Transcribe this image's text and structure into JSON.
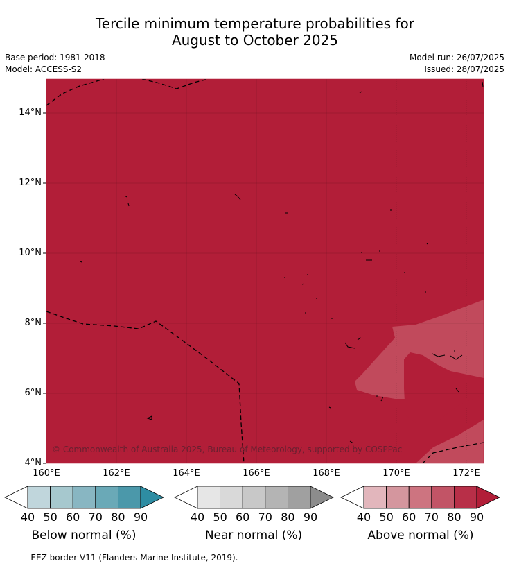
{
  "title_line1": "Tercile minimum temperature probabilities for",
  "title_line2": "August to October 2025",
  "meta": {
    "base_period": "Base period: 1981-2018",
    "model": "Model: ACCESS-S2",
    "model_run": "Model run: 26/07/2025",
    "issued": "Issued: 28/07/2025"
  },
  "map": {
    "lat_labels": [
      "14°N",
      "12°N",
      "10°N",
      "8°N",
      "6°N",
      "4°N"
    ],
    "lon_labels": [
      "160°E",
      "162°E",
      "164°E",
      "166°E",
      "168°E",
      "170°E",
      "172°E"
    ],
    "copyright": "© Commonwealth of Australia 2025, Bureau of Meteorology, supported by COSPPac",
    "colors": {
      "above_80_90": "#b21e38",
      "above_70_80": "#c14a5c",
      "land": "#000000"
    }
  },
  "colorbars": [
    {
      "name": "below",
      "label": "Below normal (%)",
      "ticks": [
        "40",
        "50",
        "60",
        "70",
        "80",
        "90"
      ],
      "colors": [
        "#ffffff",
        "#c0d6dc",
        "#a6c8ce",
        "#88b6c2",
        "#6aa9b7",
        "#4b98aa",
        "#2e8da3"
      ]
    },
    {
      "name": "near",
      "label": "Near normal (%)",
      "ticks": [
        "40",
        "50",
        "60",
        "70",
        "80",
        "90"
      ],
      "colors": [
        "#ffffff",
        "#e6e6e6",
        "#d9d9d9",
        "#c8c8c8",
        "#b4b4b4",
        "#a0a0a0",
        "#8c8c8c"
      ]
    },
    {
      "name": "above",
      "label": "Above normal (%)",
      "ticks": [
        "40",
        "50",
        "60",
        "70",
        "80",
        "90"
      ],
      "colors": [
        "#ffffff",
        "#e2b6bc",
        "#d4969e",
        "#cd7480",
        "#c25466",
        "#b82f48",
        "#b21e38"
      ]
    }
  ],
  "footnote": "-- -- -- EEZ border V11 (Flanders Marine Institute, 2019)."
}
